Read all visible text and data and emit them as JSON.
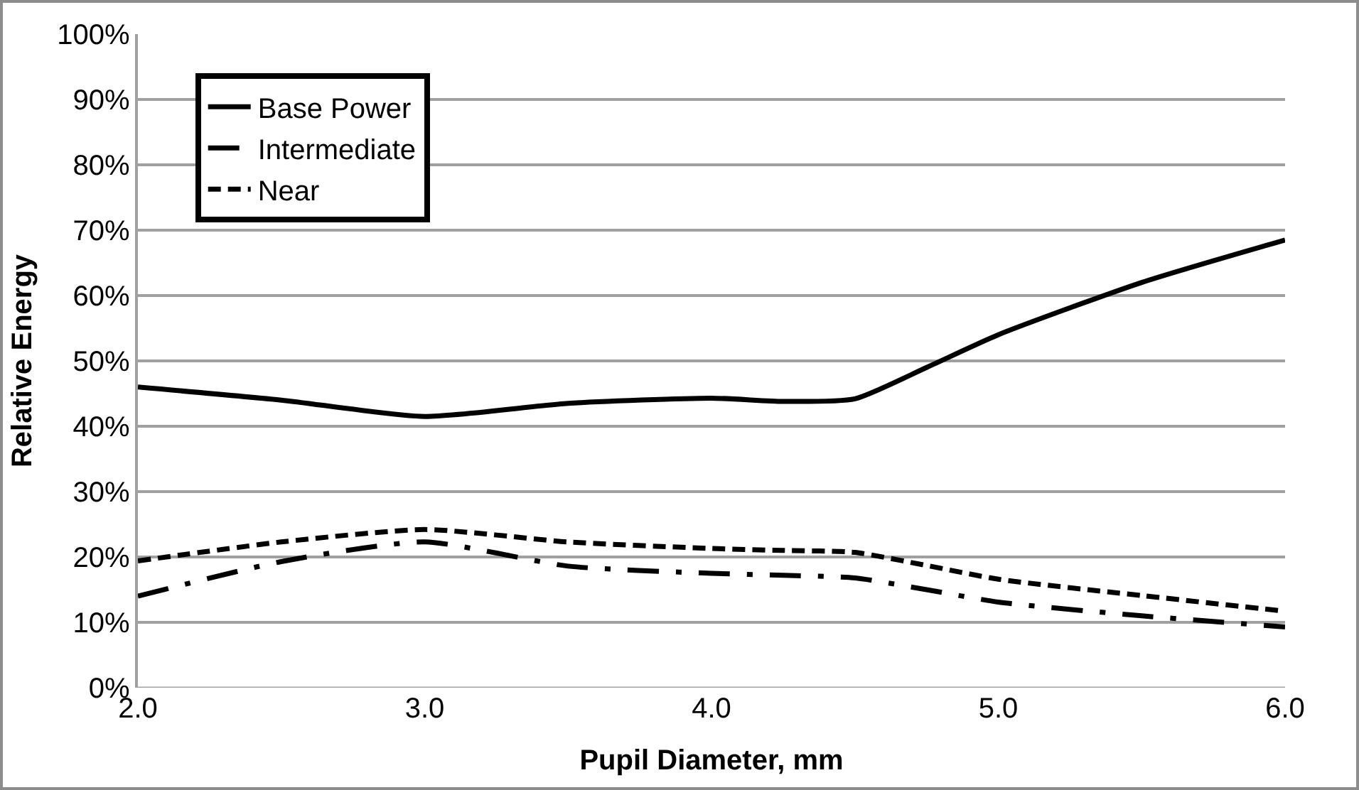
{
  "chart_data": {
    "type": "line",
    "xlabel": "Pupil Diameter, mm",
    "ylabel": "Relative Energy",
    "x": [
      2.0,
      2.5,
      3.0,
      3.5,
      4.0,
      4.25,
      4.5,
      4.75,
      5.0,
      5.5,
      6.0
    ],
    "series": [
      {
        "name": "Base Power",
        "color": "#000000",
        "line_style": "solid",
        "values": [
          46,
          44,
          41.5,
          43.5,
          44.3,
          43.8,
          44.2,
          49,
          54,
          62,
          68.5
        ]
      },
      {
        "name": "Intermediate",
        "color": "#000000",
        "line_style": "dashdot",
        "values": [
          14,
          19.3,
          22.3,
          18.6,
          17.5,
          17.2,
          16.8,
          15,
          13.1,
          11,
          9.3
        ]
      },
      {
        "name": "Near",
        "color": "#000000",
        "line_style": "dashed",
        "values": [
          19.4,
          22.3,
          24.2,
          22.3,
          21.3,
          21,
          20.7,
          18.7,
          16.6,
          14.1,
          11.7
        ]
      }
    ],
    "xlim": [
      2.0,
      6.0
    ],
    "xticks": [
      {
        "value": 2,
        "label": "2.0"
      },
      {
        "value": 3,
        "label": "3.0"
      },
      {
        "value": 4,
        "label": "4.0"
      },
      {
        "value": 5,
        "label": "5.0"
      },
      {
        "value": 6,
        "label": "6.0"
      }
    ],
    "ylim": [
      0,
      100
    ],
    "yticks": [
      {
        "value": 0,
        "label": "0%"
      },
      {
        "value": 10,
        "label": "10%"
      },
      {
        "value": 20,
        "label": "20%"
      },
      {
        "value": 30,
        "label": "30%"
      },
      {
        "value": 40,
        "label": "40%"
      },
      {
        "value": 50,
        "label": "50%"
      },
      {
        "value": 60,
        "label": "60%"
      },
      {
        "value": 70,
        "label": "70%"
      },
      {
        "value": 80,
        "label": "80%"
      },
      {
        "value": 90,
        "label": "90%"
      },
      {
        "value": 100,
        "label": "100%"
      }
    ],
    "grid": "y",
    "legend": "top left",
    "marker": "none"
  }
}
